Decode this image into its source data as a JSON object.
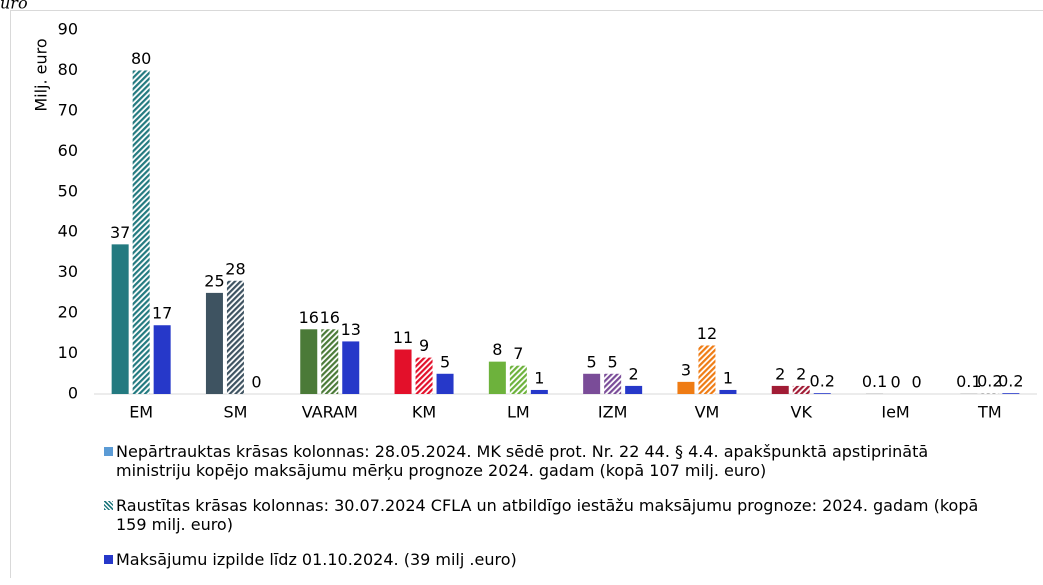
{
  "chart_data": {
    "type": "bar",
    "title": "uro",
    "y_label": "Milj. euro",
    "categories": [
      "EM",
      "SM",
      "VARAM",
      "KM",
      "LM",
      "IZM",
      "VM",
      "VK",
      "IeM",
      "TM"
    ],
    "series": [
      {
        "name": "Nepārtrauktas krāsas kolonnas: 28.05.2024. MK sēdē prot. Nr. 22 44. § 4.4. apakšpunktā apstiprinātā ministriju kopējo maksājumu mērķu prognoze 2024. gadam (kopā 107 milj. euro)",
        "color": "#5b9bd5",
        "pattern": "solid",
        "colors": [
          "#237a80",
          "#3e5361",
          "#4b7a38",
          "#e3102a",
          "#6db23c",
          "#7a4c98",
          "#ef7c14",
          "#a11c35",
          "#a6a6a6",
          "#a6a6a6"
        ],
        "values": [
          37,
          25,
          16,
          11,
          8,
          5,
          3,
          2,
          0.1,
          0.1
        ]
      },
      {
        "name": "Raustītas krāsas kolonnas: 30.07.2024 CFLA un atbildīgo iestāžu maksājumu prognoze: 2024. gadam (kopā 159 milj. euro)",
        "color": "#237a80",
        "pattern": "hatched",
        "colors": [
          "#237a80",
          "#3e5361",
          "#4b7a38",
          "#e3102a",
          "#6db23c",
          "#7a4c98",
          "#ef7c14",
          "#a11c35",
          "#a6a6a6",
          "#a6a6a6"
        ],
        "values": [
          80,
          28,
          16,
          9,
          7,
          5,
          12,
          2,
          0,
          0.2
        ]
      },
      {
        "name": "Maksājumu izpilde līdz 01.10.2024. (39 milj .euro)",
        "color": "#2638c9",
        "pattern": "solid",
        "values": [
          17,
          0,
          13,
          5,
          1,
          2,
          1,
          0.2,
          0,
          0.2
        ]
      }
    ],
    "ylim": [
      0,
      90
    ],
    "yticks": [
      0,
      10,
      20,
      30,
      40,
      50,
      60,
      70,
      80,
      90
    ],
    "grid": false
  }
}
